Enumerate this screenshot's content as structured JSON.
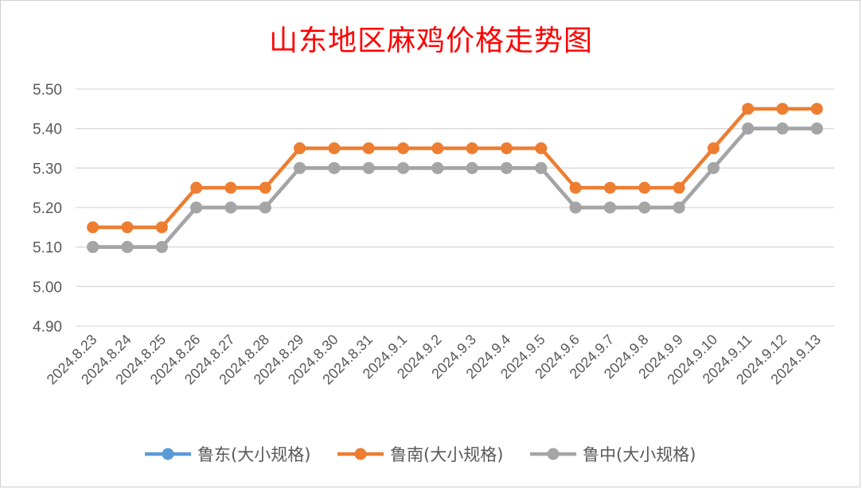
{
  "chart_data": {
    "type": "line",
    "title": "山东地区麻鸡价格走势图",
    "title_color": "#ff0000",
    "xlabel": "",
    "ylabel": "",
    "ylim": [
      4.9,
      5.5
    ],
    "y_ticks": [
      "5.50",
      "5.40",
      "5.30",
      "5.20",
      "5.10",
      "5.00",
      "4.90"
    ],
    "grid": true,
    "legend_position": "bottom",
    "categories": [
      "2024.8.23",
      "2024.8.24",
      "2024.8.25",
      "2024.8.26",
      "2024.8.27",
      "2024.8.28",
      "2024.8.29",
      "2024.8.30",
      "2024.8.31",
      "2024.9.1",
      "2024.9.2",
      "2024.9.3",
      "2024.9.4",
      "2024.9.5",
      "2024.9.6",
      "2024.9.7",
      "2024.9.8",
      "2024.9.9",
      "2024.9.10",
      "2024.9.11",
      "2024.9.12",
      "2024.9.13"
    ],
    "series": [
      {
        "name": "鲁东(大小规格)",
        "color": "#5b9bd5",
        "values": [
          5.1,
          5.1,
          5.1,
          5.2,
          5.2,
          5.2,
          5.3,
          5.3,
          5.3,
          5.3,
          5.3,
          5.3,
          5.3,
          5.3,
          5.2,
          5.2,
          5.2,
          5.2,
          5.3,
          5.4,
          5.4,
          5.4
        ]
      },
      {
        "name": "鲁南(大小规格)",
        "color": "#ed7d31",
        "values": [
          5.15,
          5.15,
          5.15,
          5.25,
          5.25,
          5.25,
          5.35,
          5.35,
          5.35,
          5.35,
          5.35,
          5.35,
          5.35,
          5.35,
          5.25,
          5.25,
          5.25,
          5.25,
          5.35,
          5.45,
          5.45,
          5.45
        ]
      },
      {
        "name": "鲁中(大小规格)",
        "color": "#a5a5a5",
        "values": [
          5.1,
          5.1,
          5.1,
          5.2,
          5.2,
          5.2,
          5.3,
          5.3,
          5.3,
          5.3,
          5.3,
          5.3,
          5.3,
          5.3,
          5.2,
          5.2,
          5.2,
          5.2,
          5.3,
          5.4,
          5.4,
          5.4
        ]
      }
    ]
  }
}
